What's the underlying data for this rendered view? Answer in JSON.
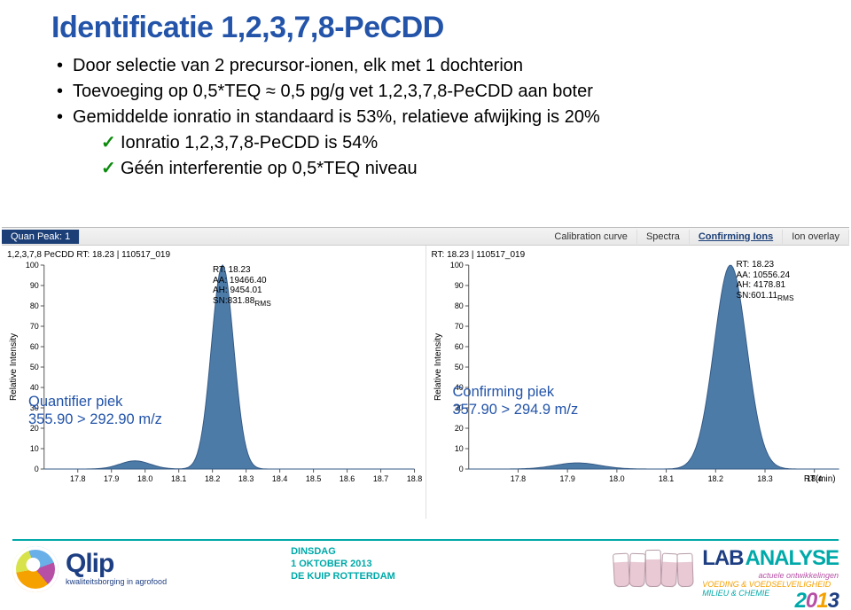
{
  "title": "Identificatie 1,2,3,7,8-PeCDD",
  "bullets": [
    "Door selectie van 2 precursor-ionen, elk met 1 dochterion",
    "Toevoeging op 0,5*TEQ ≈ 0,5 pg/g vet 1,2,3,7,8-PeCDD aan boter",
    "Gemiddelde ionratio in standaard is 53%, relatieve afwijking is 20%"
  ],
  "sub_bullets": [
    "Ionratio 1,2,3,7,8-PeCDD is 54%",
    "Géén interferentie op 0,5*TEQ niveau"
  ],
  "tabs": {
    "left_active": "Quan Peak: 1",
    "right": [
      "Calibration curve",
      "Spectra",
      "Confirming Ions",
      "Ion overlay"
    ],
    "right_active_index": 2
  },
  "chart_left": {
    "type": "line",
    "sample_label": "1,2,3,7,8 PeCDD RT: 18.23 | 110517_019",
    "info": {
      "rt": "RT: 18.23",
      "aa": "AA: 19466.40",
      "ah": "AH: 9454.01",
      "sn": "SN:831.88",
      "sn_sub": "RMS"
    },
    "xlabel": "",
    "ylabel": "Relative Intensity",
    "ylim": [
      0,
      100
    ],
    "ytick_step": 10,
    "xlim": [
      17.7,
      18.8
    ],
    "xtick_step": 0.1,
    "peak_center": 18.23,
    "peak_height": 100,
    "bump_center": 17.97,
    "bump_height": 4,
    "fill_color": "#4d7ba8",
    "stroke_color": "#355a85",
    "callout": {
      "line1": "Quantifier piek",
      "line2": "355.90 > 292.90 m/z"
    }
  },
  "chart_right": {
    "type": "line",
    "sample_label": "RT: 18.23 | 110517_019",
    "info": {
      "rt": "RT: 18.23",
      "aa": "AA: 10556.24",
      "ah": "AH: 4178.81",
      "sn": "SN:601.11",
      "sn_sub": "RMS"
    },
    "xlabel": "RT(min)",
    "ylabel": "Relative Intensity",
    "ylim": [
      0,
      100
    ],
    "ytick_step": 10,
    "xlim": [
      17.7,
      18.45
    ],
    "xtick_step": 0.1,
    "peak_center": 18.23,
    "peak_height": 100,
    "bump_center": 17.92,
    "bump_height": 3,
    "fill_color": "#4d7ba8",
    "stroke_color": "#355a85",
    "callout": {
      "line1": "Confirming piek",
      "line2": "357.90 > 294.9 m/z"
    }
  },
  "footer": {
    "qlip_name": "Qlip",
    "qlip_tag": "kwaliteitsborging in agrofood",
    "center": {
      "l1": "DINSDAG",
      "l2": "1 OKTOBER 2013",
      "l3": "DE KUIP ROTTERDAM"
    },
    "lab": {
      "brand1": "LAB",
      "brand2": "ANALYSE",
      "sub1": "actuele ontwikkelingen",
      "sub2a": "VOEDING & VOEDSELVEILIGHEID",
      "sub2b": "MILIEU & CHEMIE",
      "year": "2013"
    }
  }
}
